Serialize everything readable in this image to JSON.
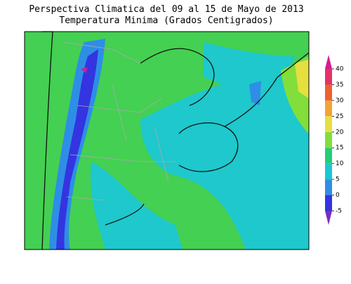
{
  "title": "Perspectiva Climatica del 09 al 15 de Mayo de 2013",
  "subtitle": "Temperatura Minima (Grados Centigrados)",
  "colorbar": {
    "ticks": [
      -5,
      0,
      5,
      10,
      15,
      20,
      25,
      30,
      35,
      40
    ],
    "colors": [
      "#7a2cc0",
      "#3434e0",
      "#2e8ee6",
      "#1cc6d6",
      "#22cf78",
      "#82de3a",
      "#e6df40",
      "#f2a434",
      "#ee6030",
      "#e43266",
      "#d41c90"
    ]
  }
}
